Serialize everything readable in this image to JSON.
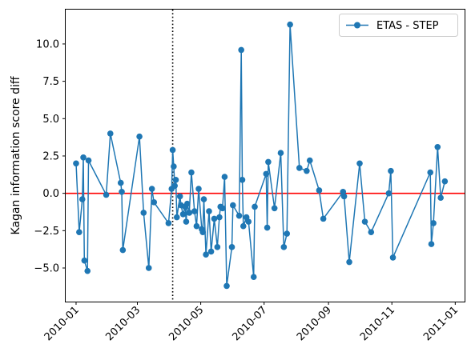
{
  "chart_data": {
    "type": "line",
    "title": "",
    "xlabel": "",
    "ylabel": "Kagan information score diff",
    "xlim": [
      "2009-12-22",
      "2011-01-10"
    ],
    "ylim": [
      -7.25,
      12.3
    ],
    "yticks": [
      -5.0,
      -2.5,
      0.0,
      2.5,
      5.0,
      7.5,
      10.0
    ],
    "ytick_labels": [
      "−5.0",
      "−2.5",
      "0.0",
      "2.5",
      "5.0",
      "7.5",
      "10.0"
    ],
    "xticks": [
      "2010-01-01",
      "2010-03-01",
      "2010-05-01",
      "2010-07-01",
      "2010-09-01",
      "2010-11-01",
      "2011-01-01"
    ],
    "xtick_labels": [
      "2010-01",
      "2010-03",
      "2010-05",
      "2010-07",
      "2010-09",
      "2010-11",
      "2011-01"
    ],
    "grid": false,
    "legend_position": "top-right",
    "reference_lines": [
      {
        "orientation": "horizontal",
        "y": 0,
        "color": "#ff0000",
        "style": "solid"
      },
      {
        "orientation": "vertical",
        "x": "2010-04-04",
        "color": "#000000",
        "style": "dotted"
      }
    ],
    "series": [
      {
        "name": "ETAS - STEP",
        "color": "#1f77b4",
        "marker": "circle",
        "points": [
          {
            "x": "2010-01-01",
            "y": 2.0
          },
          {
            "x": "2010-01-04",
            "y": -2.6
          },
          {
            "x": "2010-01-07",
            "y": -0.4
          },
          {
            "x": "2010-01-08",
            "y": 2.4
          },
          {
            "x": "2010-01-09",
            "y": -4.5
          },
          {
            "x": "2010-01-12",
            "y": -5.2
          },
          {
            "x": "2010-01-13",
            "y": 2.2
          },
          {
            "x": "2010-01-30",
            "y": -0.1
          },
          {
            "x": "2010-02-03",
            "y": 4.0
          },
          {
            "x": "2010-02-13",
            "y": 0.7
          },
          {
            "x": "2010-02-14",
            "y": 0.1
          },
          {
            "x": "2010-02-15",
            "y": -3.8
          },
          {
            "x": "2010-03-03",
            "y": 3.8
          },
          {
            "x": "2010-03-07",
            "y": -1.3
          },
          {
            "x": "2010-03-12",
            "y": -5.0
          },
          {
            "x": "2010-03-15",
            "y": 0.3
          },
          {
            "x": "2010-03-17",
            "y": -0.6
          },
          {
            "x": "2010-03-31",
            "y": -2.0
          },
          {
            "x": "2010-04-03",
            "y": 0.3
          },
          {
            "x": "2010-04-04",
            "y": 2.9
          },
          {
            "x": "2010-04-05",
            "y": 1.8
          },
          {
            "x": "2010-04-06",
            "y": 0.5
          },
          {
            "x": "2010-04-07",
            "y": 0.9
          },
          {
            "x": "2010-04-08",
            "y": -1.6
          },
          {
            "x": "2010-04-11",
            "y": -0.2
          },
          {
            "x": "2010-04-12",
            "y": -0.8
          },
          {
            "x": "2010-04-14",
            "y": -1.4
          },
          {
            "x": "2010-04-16",
            "y": -0.9
          },
          {
            "x": "2010-04-17",
            "y": -1.9
          },
          {
            "x": "2010-04-18",
            "y": -0.7
          },
          {
            "x": "2010-04-20",
            "y": -1.3
          },
          {
            "x": "2010-04-22",
            "y": 1.4
          },
          {
            "x": "2010-04-25",
            "y": -1.2
          },
          {
            "x": "2010-04-27",
            "y": -2.2
          },
          {
            "x": "2010-04-29",
            "y": 0.3
          },
          {
            "x": "2010-05-02",
            "y": -2.4
          },
          {
            "x": "2010-05-03",
            "y": -2.6
          },
          {
            "x": "2010-05-04",
            "y": -0.4
          },
          {
            "x": "2010-05-06",
            "y": -4.1
          },
          {
            "x": "2010-05-09",
            "y": -1.2
          },
          {
            "x": "2010-05-11",
            "y": -3.9
          },
          {
            "x": "2010-05-14",
            "y": -1.7
          },
          {
            "x": "2010-05-17",
            "y": -3.6
          },
          {
            "x": "2010-05-19",
            "y": -1.6
          },
          {
            "x": "2010-05-20",
            "y": -0.9
          },
          {
            "x": "2010-05-22",
            "y": -1.0
          },
          {
            "x": "2010-05-24",
            "y": 1.1
          },
          {
            "x": "2010-05-26",
            "y": -6.2
          },
          {
            "x": "2010-05-31",
            "y": -3.6
          },
          {
            "x": "2010-06-01",
            "y": -0.8
          },
          {
            "x": "2010-06-07",
            "y": -1.5
          },
          {
            "x": "2010-06-09",
            "y": 9.6
          },
          {
            "x": "2010-06-10",
            "y": 0.9
          },
          {
            "x": "2010-06-11",
            "y": -2.2
          },
          {
            "x": "2010-06-14",
            "y": -1.6
          },
          {
            "x": "2010-06-16",
            "y": -1.9
          },
          {
            "x": "2010-06-21",
            "y": -5.6
          },
          {
            "x": "2010-06-22",
            "y": -0.9
          },
          {
            "x": "2010-07-03",
            "y": 1.3
          },
          {
            "x": "2010-07-04",
            "y": -2.3
          },
          {
            "x": "2010-07-05",
            "y": 2.1
          },
          {
            "x": "2010-07-11",
            "y": -1.0
          },
          {
            "x": "2010-07-17",
            "y": 2.7
          },
          {
            "x": "2010-07-20",
            "y": -3.6
          },
          {
            "x": "2010-07-23",
            "y": -2.7
          },
          {
            "x": "2010-07-26",
            "y": 11.3
          },
          {
            "x": "2010-08-04",
            "y": 1.7
          },
          {
            "x": "2010-08-11",
            "y": 1.5
          },
          {
            "x": "2010-08-14",
            "y": 2.2
          },
          {
            "x": "2010-08-23",
            "y": 0.2
          },
          {
            "x": "2010-08-27",
            "y": -1.7
          },
          {
            "x": "2010-09-15",
            "y": 0.1
          },
          {
            "x": "2010-09-16",
            "y": -0.2
          },
          {
            "x": "2010-09-21",
            "y": -4.6
          },
          {
            "x": "2010-10-01",
            "y": 2.0
          },
          {
            "x": "2010-10-06",
            "y": -1.9
          },
          {
            "x": "2010-10-12",
            "y": -2.6
          },
          {
            "x": "2010-10-29",
            "y": 0.0
          },
          {
            "x": "2010-10-31",
            "y": 1.5
          },
          {
            "x": "2010-11-02",
            "y": -4.3
          },
          {
            "x": "2010-12-08",
            "y": 1.4
          },
          {
            "x": "2010-12-09",
            "y": -3.4
          },
          {
            "x": "2010-12-11",
            "y": -2.0
          },
          {
            "x": "2010-12-15",
            "y": 3.1
          },
          {
            "x": "2010-12-18",
            "y": -0.3
          },
          {
            "x": "2010-12-22",
            "y": 0.8
          }
        ]
      }
    ]
  }
}
